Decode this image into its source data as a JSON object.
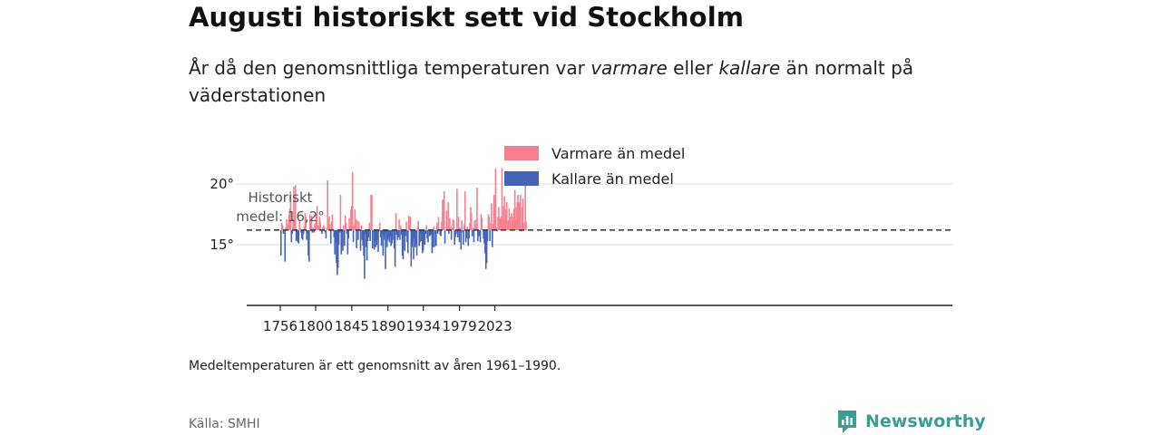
{
  "title": "Augusti historiskt sett vid Stockholm",
  "subtitle": {
    "part1": "År då den genomsnittliga temperaturen var ",
    "warm_word": "varmare",
    "part2": " eller ",
    "cold_word": "kallare",
    "part3": " än normalt på väderstationen"
  },
  "note": "Medeltemperaturen är ett genomsnitt av åren 1961–1990.",
  "source": "Källa: SMHI",
  "brand": {
    "name": "Newsworthy",
    "color": "#3a9e96",
    "icon": "newsworthy-logo-icon"
  },
  "colors": {
    "warm": "#f7808f",
    "cold": "#4464b8",
    "baseline": "#333333",
    "grid": "#dddddd"
  },
  "chart_data": {
    "type": "bar",
    "baseline": 16.2,
    "ylim": [
      10,
      23
    ],
    "yticks": [
      {
        "value": 15,
        "label": "15°"
      },
      {
        "value": 20,
        "label": "20°"
      }
    ],
    "xticks": [
      1756,
      1800,
      1845,
      1890,
      1934,
      1979,
      2023
    ],
    "legend": {
      "warm": "Varmare än medel",
      "cold": "Kallare än medel",
      "position": "top-center"
    },
    "annotation": {
      "line1": "Historiskt",
      "line2": "medel: 16,2°"
    },
    "series": [
      {
        "start_year": 1756,
        "values": [
          14.1,
          16.8,
          16.6,
          15.9,
          16.2,
          13.6,
          16.4,
          17.1,
          16.7,
          16.3,
          17.5,
          18.0,
          19.2,
          15.2,
          15.9,
          16.9,
          19.8,
          17.4,
          19.9,
          15.3,
          15.5,
          15.2,
          15.1,
          17.0,
          16.4,
          16.0,
          15.5,
          15.4,
          15.9,
          16.5,
          17.6,
          17.3,
          15.4,
          15.9,
          14.1,
          13.6,
          17.5,
          16.9,
          17.4,
          16.0,
          16.4,
          16.0,
          16.7,
          16.8,
          17.6,
          18.2,
          16.6,
          16.6,
          17.3,
          16.9,
          16.2,
          15.9,
          16.4,
          16.6,
          16.5,
          16.0,
          15.5,
          16.3,
          20.3,
          16.7,
          17.3,
          16.7,
          15.1,
          16.9,
          17.5,
          16.3,
          15.6,
          14.2,
          15.2,
          13.5,
          12.5,
          13.1,
          15.0,
          16.0,
          19.1,
          14.2,
          14.8,
          14.5,
          16.6,
          14.9,
          17.4,
          16.8,
          15.9,
          14.2,
          15.5,
          17.2,
          16.5,
          17.9,
          18.2,
          21.0,
          15.2,
          16.6,
          17.9,
          17.1,
          14.7,
          17.0,
          15.4,
          16.9,
          16.2,
          14.5,
          16.6,
          15.4,
          14.9,
          14.1,
          12.2,
          15.9,
          14.8,
          13.7,
          15.3,
          15.6,
          16.8,
          15.3,
          19.1,
          19.1,
          14.7,
          16.1,
          14.6,
          15.3,
          14.8,
          15.0,
          15.4,
          14.4,
          16.1,
          16.8,
          15.6,
          14.9,
          15.9,
          14.1,
          15.7,
          15.4,
          13.0,
          16.0,
          14.8,
          15.4,
          15.6,
          15.2,
          15.7,
          14.9,
          15.1,
          15.4,
          16.1,
          14.7,
          13.2,
          17.6,
          15.8,
          15.4,
          15.6,
          17.1,
          15.4,
          16.6,
          15.8,
          14.1,
          13.8,
          15.7,
          14.5,
          15.7,
          16.9,
          15.2,
          14.3,
          17.4,
          16.6,
          17.3,
          13.2,
          14.8,
          15.3,
          13.8,
          15.5,
          14.8,
          15.1,
          14.1,
          16.5,
          17.0,
          14.9,
          15.2,
          15.9,
          15.3,
          14.3,
          14.5,
          15.0,
          15.0,
          15.9,
          16.6,
          15.5,
          15.2,
          16.3,
          15.7,
          15.8,
          15.9,
          14.3,
          14.8,
          16.5,
          14.8,
          15.9,
          14.9,
          16.8,
          15.9,
          17.3,
          16.2,
          15.8,
          15.7,
          16.9,
          18.7,
          18.7,
          19.4,
          15.1,
          16.2,
          17.8,
          16.5,
          18.5,
          15.9,
          17.2,
          16.5,
          15.4,
          16.4,
          17.1,
          17.0,
          15.0,
          15.6,
          15.9,
          19.6,
          15.6,
          17.3,
          15.2,
          16.4,
          14.6,
          17.0,
          16.0,
          15.0,
          16.7,
          19.4,
          15.2,
          15.5,
          16.5,
          14.9,
          15.5,
          16.8,
          18.1,
          17.6,
          15.7,
          16.4,
          15.2,
          17.0,
          16.4,
          17.1,
          19.7,
          15.3,
          15.7,
          15.8,
          15.2,
          17.5,
          17.2,
          16.2,
          15.5,
          15.1,
          14.3,
          13.0,
          13.5,
          15.3,
          17.5,
          17.3,
          15.3,
          16.8,
          18.4,
          14.8,
          16.7,
          19.1,
          18.6,
          21.3,
          16.4,
          16.1,
          17.3,
          18.1,
          17.2,
          17.1,
          17.3,
          21.3,
          17.1,
          18.2,
          19.0,
          17.2,
          17.9,
          18.5,
          16.9,
          17.0,
          18.0,
          17.3,
          16.6,
          17.6,
          17.3,
          17.0,
          17.9,
          19.5,
          17.1,
          18.1,
          18.5,
          19.1,
          18.5,
          18.4,
          19.1,
          16.1,
          18.1,
          18.8,
          16.8,
          16.2,
          19.9,
          16.9
        ]
      }
    ]
  }
}
